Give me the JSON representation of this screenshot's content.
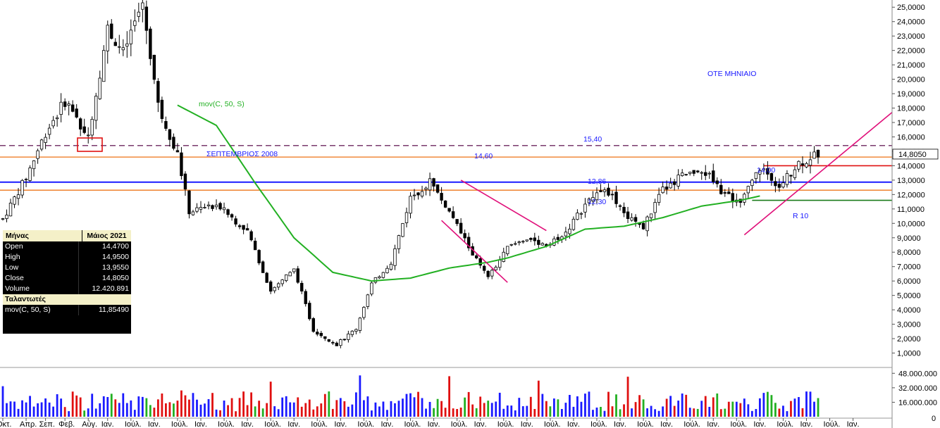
{
  "chart_data": {
    "type": "candlestick",
    "title": "ΟΤΕ ΜΗΝΙΑΙΟ",
    "indicator_label": "mov(C, 50, S)",
    "annotation_label": "ΣΕΠΤΕΜΒΡΙΟΣ 2008",
    "trendline_label": "R 10",
    "ylim": [
      0,
      25.5
    ],
    "y_ticks": [
      "1,0000",
      "2,0000",
      "3,0000",
      "4,0000",
      "5,0000",
      "6,0000",
      "7,0000",
      "8,0000",
      "9,0000",
      "10,0000",
      "11,0000",
      "12,0000",
      "13,0000",
      "14,0000",
      "15,0000",
      "16,0000",
      "17,0000",
      "18,0000",
      "19,0000",
      "20,0000",
      "21,0000",
      "22,0000",
      "23,0000",
      "24,0000",
      "25,0000"
    ],
    "y_tick_values": [
      1,
      2,
      3,
      4,
      5,
      6,
      7,
      8,
      9,
      10,
      11,
      12,
      13,
      14,
      15,
      16,
      17,
      18,
      19,
      20,
      21,
      22,
      23,
      24,
      25
    ],
    "volume_ticks": [
      "48.000.000",
      "32.000.000",
      "16.000.000"
    ],
    "volume_tick_values": [
      48000000,
      32000000,
      16000000
    ],
    "volume_zero_label": "0",
    "x_ticks": [
      "Οκτ.",
      "Απρ.",
      "Σεπ.",
      "Φεβ.",
      "Αύγ.",
      "Ιαν.",
      "Ιούλ.",
      "Ιαν.",
      "Ιούλ.",
      "Ιαν.",
      "Ιούλ.",
      "Ιαν.",
      "Ιούλ.",
      "Ιαν.",
      "Ιούλ.",
      "Ιαν.",
      "Ιούλ.",
      "Ιαν.",
      "Ιούλ.",
      "Ιαν.",
      "Ιούλ.",
      "Ιαν.",
      "Ιούλ.",
      "Ιαν.",
      "Ιούλ.",
      "Ιαν.",
      "Ιούλ.",
      "Ιαν.",
      "Ιούλ.",
      "Ιαν.",
      "Ιούλ.",
      "Ιαν.",
      "Ιούλ.",
      "Ιαν.",
      "Ιούλ.",
      "Ιαν.",
      "Ιούλ.",
      "Ιαν."
    ],
    "x_tick_month_index": [
      0,
      6,
      11,
      16,
      22,
      27,
      33,
      39,
      45,
      51,
      57,
      63,
      69,
      75,
      81,
      87,
      93,
      99,
      105,
      111,
      117,
      123,
      129,
      135,
      141,
      147,
      153,
      159,
      165,
      171,
      177,
      183,
      189,
      195,
      201,
      207,
      213,
      219
    ],
    "horizontal_levels": [
      {
        "label": "15,40",
        "value": 15.4,
        "color": "#7a3a6e",
        "style": "dashed"
      },
      {
        "label": "14,60",
        "value": 14.6,
        "color": "#f08a3c",
        "style": "solid"
      },
      {
        "label": "14,00",
        "value": 14.0,
        "color": "#e01010",
        "style": "solid"
      },
      {
        "label": "12,86",
        "value": 12.86,
        "color": "#1a1aff",
        "style": "solid"
      },
      {
        "label": "12,30",
        "value": 12.3,
        "color": "#f08a3c",
        "style": "solid"
      },
      {
        "label": "",
        "value": 11.6,
        "color": "#1a7a1a",
        "style": "solid"
      }
    ],
    "last_price_label": "14,8050",
    "price_path": [
      [
        0,
        10.3
      ],
      [
        6,
        13.2
      ],
      [
        11,
        16.3
      ],
      [
        16,
        18.5
      ],
      [
        22,
        16.1
      ],
      [
        27,
        23.5
      ],
      [
        31,
        21.8
      ],
      [
        36,
        25.3
      ],
      [
        40,
        18.2
      ],
      [
        45,
        14.8
      ],
      [
        48,
        10.8
      ],
      [
        55,
        11.3
      ],
      [
        63,
        9.5
      ],
      [
        69,
        5.3
      ],
      [
        75,
        6.9
      ],
      [
        80,
        2.6
      ],
      [
        86,
        1.6
      ],
      [
        91,
        2.7
      ],
      [
        95,
        5.8
      ],
      [
        100,
        7.3
      ],
      [
        105,
        11.8
      ],
      [
        110,
        12.9
      ],
      [
        115,
        10.8
      ],
      [
        121,
        7.9
      ],
      [
        125,
        6.2
      ],
      [
        130,
        8.3
      ],
      [
        135,
        9.0
      ],
      [
        140,
        8.5
      ],
      [
        145,
        9.4
      ],
      [
        150,
        11.3
      ],
      [
        155,
        12.6
      ],
      [
        160,
        10.6
      ],
      [
        165,
        9.8
      ],
      [
        170,
        12.3
      ],
      [
        175,
        13.3
      ],
      [
        180,
        13.8
      ],
      [
        186,
        12.0
      ],
      [
        190,
        11.3
      ],
      [
        195,
        13.9
      ],
      [
        200,
        12.6
      ],
      [
        205,
        14.2
      ],
      [
        210,
        14.8
      ]
    ],
    "ma_path": [
      [
        45,
        18.2
      ],
      [
        55,
        16.8
      ],
      [
        65,
        12.8
      ],
      [
        75,
        9.0
      ],
      [
        85,
        6.6
      ],
      [
        95,
        6.0
      ],
      [
        105,
        6.2
      ],
      [
        115,
        6.9
      ],
      [
        125,
        7.3
      ],
      [
        130,
        7.6
      ],
      [
        140,
        8.4
      ],
      [
        150,
        9.6
      ],
      [
        160,
        9.8
      ],
      [
        170,
        10.4
      ],
      [
        180,
        11.2
      ],
      [
        190,
        11.6
      ],
      [
        195,
        11.9
      ]
    ],
    "indicator_start_month": 45,
    "months": 220,
    "info_panel": {
      "header_key": "Μήνας",
      "header_value": "Μάιος 2021",
      "rows": [
        {
          "k": "Open",
          "v": "14,4700"
        },
        {
          "k": "High",
          "v": "14,9500"
        },
        {
          "k": "Low",
          "v": "13,9550"
        },
        {
          "k": "Close",
          "v": "14,8050"
        },
        {
          "k": "Volume",
          "v": "12.420.891"
        }
      ],
      "section": "Ταλαντωτές",
      "indicator_row": {
        "k": "mov(C, 50, S)",
        "v": "11,85490"
      }
    },
    "colors": {
      "up": "#000000",
      "down": "#000000",
      "ma": "#22b022",
      "trend": "#e0107a",
      "vol_up": "#1a1aff",
      "vol_down": "#e01010",
      "vol_neutral": "#22b022",
      "title": "#1a1aff"
    }
  }
}
